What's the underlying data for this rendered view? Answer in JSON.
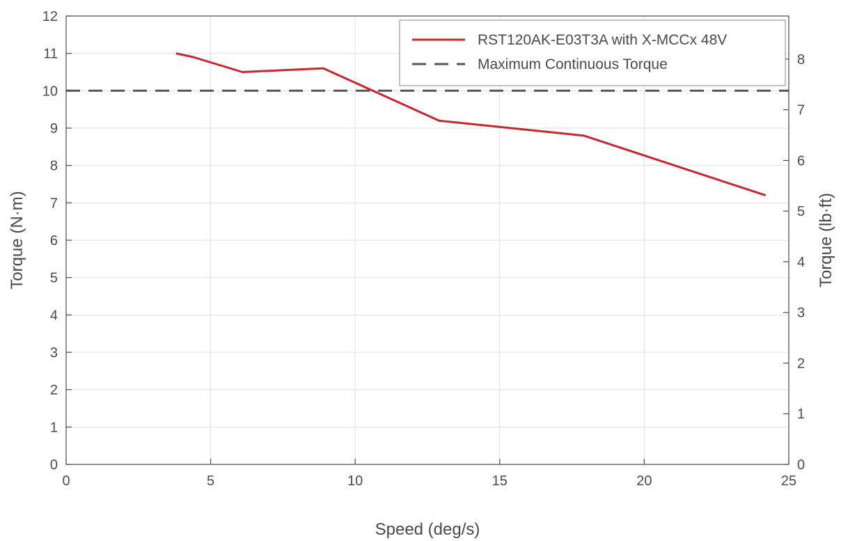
{
  "chart_data": {
    "type": "line",
    "title": "",
    "xlabel": "Speed (deg/s)",
    "ylabel": "Torque (N·m)",
    "y2label": "Torque (lb·ft)",
    "xlim": [
      0,
      25
    ],
    "ylim": [
      0,
      12
    ],
    "y2lim": [
      0,
      8.85
    ],
    "xticks": [
      "0",
      "5",
      "10",
      "15",
      "20",
      "25"
    ],
    "yticks": [
      "0",
      "1",
      "2",
      "3",
      "4",
      "5",
      "6",
      "7",
      "8",
      "9",
      "10",
      "11",
      "12"
    ],
    "y2ticks": [
      "0",
      "1",
      "2",
      "3",
      "4",
      "5",
      "6",
      "7",
      "8"
    ],
    "grid": true,
    "legend_position": "top-right",
    "series": [
      {
        "name": "RST120AK-E03T3A with X-MCCx 48V",
        "style": "solid",
        "color": "#c8262c",
        "x": [
          3.8,
          4.4,
          6.1,
          8.9,
          12.9,
          17.9,
          24.2
        ],
        "y": [
          11.0,
          10.9,
          10.5,
          10.6,
          9.2,
          8.8,
          7.2
        ]
      },
      {
        "name": "Maximum Continuous Torque",
        "style": "dashed",
        "color": "#555555",
        "x": [
          0,
          25
        ],
        "y": [
          10,
          10
        ]
      }
    ]
  }
}
